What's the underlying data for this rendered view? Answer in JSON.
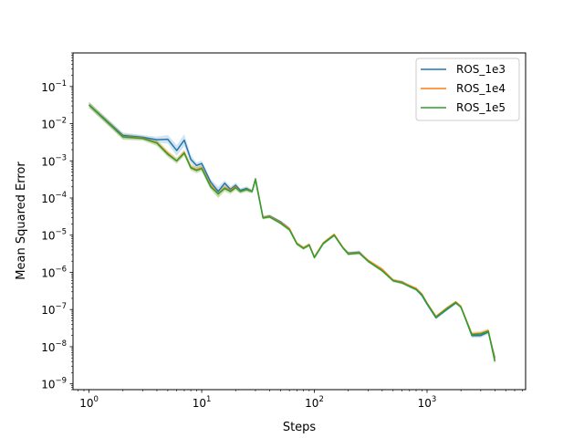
{
  "chart_data": {
    "type": "line",
    "title": "",
    "xlabel": "Steps",
    "ylabel": "Mean Squared Error",
    "xscale": "log",
    "yscale": "log",
    "xlim": [
      0.72,
      7500
    ],
    "ylim": [
      7e-10,
      0.8
    ],
    "grid": false,
    "legend_position": "upper-right",
    "x_ticks": [
      {
        "base": "10",
        "exp": "0",
        "value": 1
      },
      {
        "base": "10",
        "exp": "1",
        "value": 10
      },
      {
        "base": "10",
        "exp": "2",
        "value": 100
      },
      {
        "base": "10",
        "exp": "3",
        "value": 1000
      }
    ],
    "y_ticks": [
      {
        "base": "10",
        "exp": "−9",
        "value": 1e-09
      },
      {
        "base": "10",
        "exp": "−8",
        "value": 1e-08
      },
      {
        "base": "10",
        "exp": "−7",
        "value": 1e-07
      },
      {
        "base": "10",
        "exp": "−6",
        "value": 1e-06
      },
      {
        "base": "10",
        "exp": "−5",
        "value": 1e-05
      },
      {
        "base": "10",
        "exp": "−4",
        "value": 0.0001
      },
      {
        "base": "10",
        "exp": "−3",
        "value": 0.001
      },
      {
        "base": "10",
        "exp": "−2",
        "value": 0.01
      },
      {
        "base": "10",
        "exp": "−1",
        "value": 0.1
      }
    ],
    "series": [
      {
        "name": "ROS_1e3",
        "color": "#1f77b4",
        "x": [
          1,
          2,
          3,
          4,
          5,
          6,
          7,
          8,
          9,
          10,
          12,
          14,
          16,
          18,
          20,
          22,
          25,
          28,
          30,
          35,
          40,
          50,
          60,
          70,
          80,
          90,
          100,
          120,
          150,
          180,
          200,
          250,
          300,
          400,
          500,
          600,
          700,
          800,
          900,
          1000,
          1200,
          1500,
          1800,
          2000,
          2500,
          3000,
          3500,
          4000
        ],
        "y": [
          0.032,
          0.0048,
          0.0043,
          0.0037,
          0.0038,
          0.0019,
          0.0036,
          0.0011,
          0.00075,
          0.00085,
          0.00027,
          0.00015,
          0.00025,
          0.00017,
          0.00022,
          0.00016,
          0.00018,
          0.00015,
          0.00033,
          3e-05,
          3.3e-05,
          2.3e-05,
          1.5e-05,
          6e-06,
          4.5e-06,
          5.5e-06,
          2.5e-06,
          6e-06,
          1e-05,
          4.5e-06,
          3.3e-06,
          3.5e-06,
          2e-06,
          1.2e-06,
          6e-07,
          5.5e-07,
          4.2e-07,
          3.5e-07,
          2.4e-07,
          1.4e-07,
          6e-08,
          1e-07,
          1.5e-07,
          1.2e-07,
          2e-08,
          2e-08,
          2.5e-08,
          5e-09
        ],
        "band": [
          0.2,
          0.2,
          0.15,
          0.2,
          0.3,
          0.4,
          0.45,
          0.3,
          0.2,
          0.2,
          0.2,
          0.35,
          0.2,
          0.2,
          0.2,
          0.15,
          0.15,
          0.12,
          0.12,
          0.1,
          0.1,
          0.1,
          0.1,
          0.1,
          0.1,
          0.1,
          0.1,
          0.1,
          0.1,
          0.1,
          0.1,
          0.1,
          0.1,
          0.1,
          0.1,
          0.1,
          0.1,
          0.1,
          0.1,
          0.1,
          0.1,
          0.1,
          0.1,
          0.1,
          0.15,
          0.15,
          0.15,
          0.2
        ]
      },
      {
        "name": "ROS_1e4",
        "color": "#ff7f0e",
        "x": [
          1,
          2,
          3,
          4,
          5,
          6,
          7,
          8,
          9,
          10,
          12,
          14,
          16,
          18,
          20,
          22,
          25,
          28,
          30,
          35,
          40,
          50,
          60,
          70,
          80,
          90,
          100,
          120,
          150,
          180,
          200,
          250,
          300,
          400,
          500,
          600,
          700,
          800,
          900,
          1000,
          1200,
          1500,
          1800,
          2000,
          2500,
          3000,
          3500,
          4000
        ],
        "y": [
          0.032,
          0.0045,
          0.0041,
          0.0031,
          0.0016,
          0.001,
          0.0017,
          0.00068,
          0.00058,
          0.00065,
          0.00022,
          0.00013,
          0.00019,
          0.00016,
          0.0002,
          0.00015,
          0.00017,
          0.00015,
          0.00032,
          3e-05,
          3.2e-05,
          2.2e-05,
          1.5e-05,
          6e-06,
          4.6e-06,
          5.6e-06,
          2.6e-06,
          6.2e-06,
          1.05e-05,
          4.6e-06,
          3.2e-06,
          3.4e-06,
          2.1e-06,
          1.2e-06,
          6.2e-07,
          5.4e-07,
          4.4e-07,
          3.7e-07,
          2.6e-07,
          1.5e-07,
          6.5e-08,
          1.1e-07,
          1.6e-07,
          1.2e-07,
          2.2e-08,
          2.3e-08,
          2.7e-08,
          4.5e-09
        ],
        "band": [
          0.2,
          0.2,
          0.15,
          0.2,
          0.2,
          0.2,
          0.2,
          0.2,
          0.2,
          0.2,
          0.2,
          0.3,
          0.2,
          0.2,
          0.2,
          0.15,
          0.15,
          0.12,
          0.12,
          0.1,
          0.1,
          0.1,
          0.1,
          0.1,
          0.1,
          0.1,
          0.1,
          0.1,
          0.1,
          0.1,
          0.1,
          0.1,
          0.1,
          0.1,
          0.1,
          0.1,
          0.1,
          0.1,
          0.1,
          0.1,
          0.1,
          0.1,
          0.1,
          0.1,
          0.15,
          0.15,
          0.15,
          0.2
        ]
      },
      {
        "name": "ROS_1e5",
        "color": "#2ca02c",
        "x": [
          1,
          2,
          3,
          4,
          5,
          6,
          7,
          8,
          9,
          10,
          12,
          14,
          16,
          18,
          20,
          22,
          25,
          28,
          30,
          35,
          40,
          50,
          60,
          70,
          80,
          90,
          100,
          120,
          150,
          180,
          200,
          250,
          300,
          400,
          500,
          600,
          700,
          800,
          900,
          1000,
          1200,
          1500,
          1800,
          2000,
          2500,
          3000,
          3500,
          4000
        ],
        "y": [
          0.032,
          0.0044,
          0.004,
          0.003,
          0.0015,
          0.001,
          0.0016,
          0.00065,
          0.00055,
          0.00062,
          0.0002,
          0.00013,
          0.00018,
          0.00015,
          0.00019,
          0.00015,
          0.00017,
          0.00015,
          0.00031,
          2.9e-05,
          3.1e-05,
          2.1e-05,
          1.4e-05,
          5.8e-06,
          4.4e-06,
          5.4e-06,
          2.5e-06,
          6e-06,
          1e-05,
          4.5e-06,
          3.1e-06,
          3.3e-06,
          2e-06,
          1.1e-06,
          6e-07,
          5.2e-07,
          4.2e-07,
          3.5e-07,
          2.5e-07,
          1.45e-07,
          6.2e-08,
          1.05e-07,
          1.55e-07,
          1.15e-07,
          2.1e-08,
          2.2e-08,
          2.6e-08,
          4e-09
        ],
        "band": [
          0.2,
          0.2,
          0.15,
          0.2,
          0.2,
          0.2,
          0.2,
          0.2,
          0.2,
          0.2,
          0.2,
          0.3,
          0.2,
          0.2,
          0.2,
          0.15,
          0.15,
          0.12,
          0.12,
          0.1,
          0.1,
          0.1,
          0.1,
          0.1,
          0.1,
          0.1,
          0.1,
          0.1,
          0.1,
          0.1,
          0.1,
          0.1,
          0.1,
          0.1,
          0.1,
          0.1,
          0.1,
          0.1,
          0.1,
          0.1,
          0.1,
          0.1,
          0.1,
          0.1,
          0.15,
          0.15,
          0.15,
          0.2
        ]
      }
    ]
  }
}
